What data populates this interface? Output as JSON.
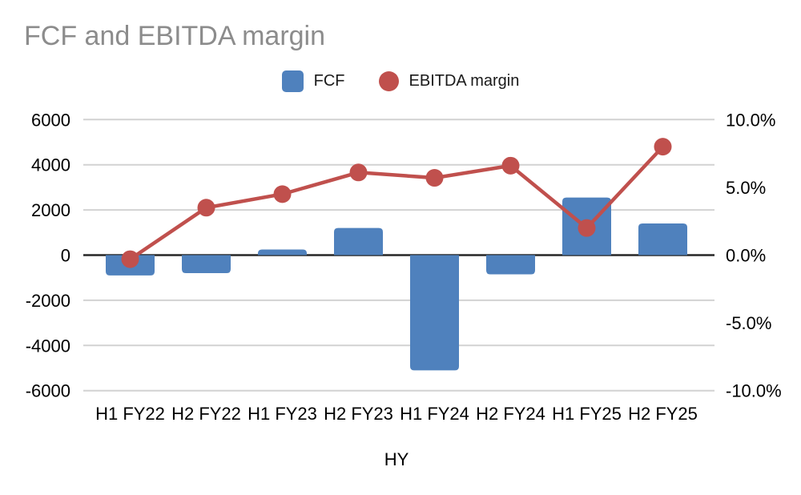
{
  "title": "FCF and EBITDA margin",
  "legend": [
    {
      "label": "FCF",
      "color": "#4f81bd",
      "shape": "square"
    },
    {
      "label": "EBITDA margin",
      "color": "#c0504d",
      "shape": "circle"
    }
  ],
  "chart_data": {
    "type": "combo-bar-line",
    "title": "FCF and EBITDA margin",
    "xlabel": "HY",
    "categories": [
      "H1 FY22",
      "H2 FY22",
      "H1 FY23",
      "H2 FY23",
      "H1 FY24",
      "H2 FY24",
      "H1 FY25",
      "H2 FY25"
    ],
    "series": [
      {
        "name": "FCF",
        "type": "bar",
        "axis": "left",
        "color": "#4f81bd",
        "values": [
          -900,
          -800,
          250,
          1200,
          -5100,
          -850,
          2550,
          1400
        ]
      },
      {
        "name": "EBITDA margin",
        "type": "line",
        "axis": "right",
        "color": "#c0504d",
        "values": [
          -0.3,
          3.5,
          4.5,
          6.1,
          5.7,
          6.6,
          2.0,
          8.0
        ]
      }
    ],
    "left_axis": {
      "ticks": [
        6000,
        4000,
        2000,
        0,
        -2000,
        -4000,
        -6000
      ],
      "range": [
        -6000,
        6000
      ]
    },
    "right_axis": {
      "ticks_pct": [
        10,
        5,
        0,
        -5,
        -10
      ],
      "tick_labels": [
        "10.0%",
        "5.0%",
        "0.0%",
        "-5.0%",
        "-10.0%"
      ],
      "range_pct": [
        -10,
        10
      ]
    },
    "grid": true,
    "legend_position": "top",
    "background": "#ffffff",
    "gridline_color": "#d2d2d2",
    "zero_line_color": "#262626",
    "text_color": "#000000"
  }
}
